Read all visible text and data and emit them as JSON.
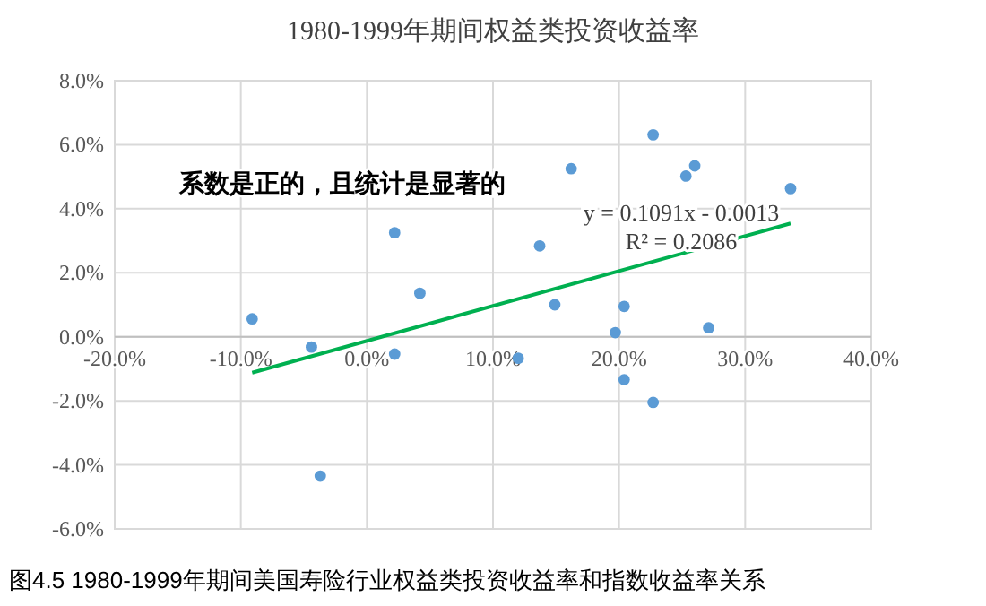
{
  "chart_data": {
    "type": "scatter",
    "title": "1980-1999年期间权益类投资收益率",
    "annotations": [
      "系数是正的，且统计是显著的",
      "y = 0.1091x - 0.0013",
      "R² = 0.2086",
      "图4.5 1980-1999年期间美国寿险行业权益类投资收益率和指数收益率关系"
    ],
    "xlim": [
      -20,
      40
    ],
    "ylim": [
      -6,
      8
    ],
    "xticks": [
      {
        "value": -20,
        "label": "-20.0%"
      },
      {
        "value": -10,
        "label": "-10.0%"
      },
      {
        "value": 0,
        "label": "0.0%"
      },
      {
        "value": 10,
        "label": "10.0%"
      },
      {
        "value": 20,
        "label": "20.0%"
      },
      {
        "value": 30,
        "label": "30.0%"
      },
      {
        "value": 40,
        "label": "40.0%"
      }
    ],
    "yticks": [
      {
        "value": -6,
        "label": "-6.0%"
      },
      {
        "value": -4,
        "label": "-4.0%"
      },
      {
        "value": -2,
        "label": "-2.0%"
      },
      {
        "value": 0,
        "label": "0.0%"
      },
      {
        "value": 2,
        "label": "2.0%"
      },
      {
        "value": 4,
        "label": "4.0%"
      },
      {
        "value": 6,
        "label": "6.0%"
      },
      {
        "value": 8,
        "label": "8.0%"
      }
    ],
    "grid": true,
    "series": [
      {
        "marker": "circle",
        "color": "#5b9bd5",
        "x": [
          -9.1,
          -4.4,
          -3.7,
          2.2,
          2.2,
          4.2,
          12.0,
          13.7,
          14.9,
          16.2,
          19.7,
          20.4,
          20.4,
          22.7,
          22.7,
          25.3,
          26.0,
          27.1,
          33.6
        ],
        "values": [
          0.56,
          -0.32,
          -4.35,
          3.25,
          -0.54,
          1.36,
          -0.67,
          2.84,
          1.0,
          5.25,
          0.13,
          0.95,
          -1.34,
          6.31,
          -2.05,
          5.02,
          5.34,
          0.28,
          4.63
        ]
      },
      {
        "type": "line",
        "color": "#00b050",
        "x": [
          -9.1,
          33.6
        ],
        "values": [
          -1.12,
          3.54
        ]
      }
    ]
  }
}
